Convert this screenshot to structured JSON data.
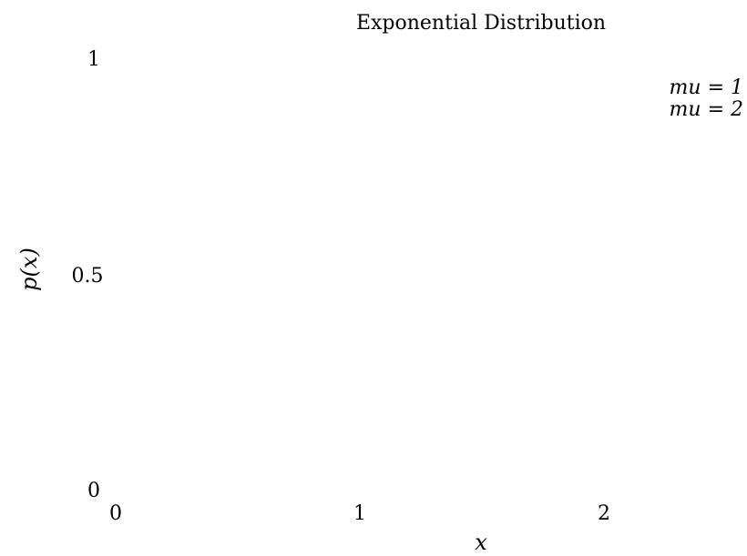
{
  "chart_data": {
    "type": "line",
    "title": "Exponential Distribution",
    "xlabel": "x",
    "ylabel": "p(x)",
    "xlim": [
      0,
      2.5
    ],
    "ylim": [
      0,
      1
    ],
    "xticks": [
      "0",
      "1",
      "2"
    ],
    "yticks": [
      "0",
      "0.5",
      "1"
    ],
    "grid": false,
    "legend_position": "top-right",
    "series": [
      {
        "name": "mu = 1",
        "x": [],
        "y": []
      },
      {
        "name": "mu = 2",
        "x": [],
        "y": []
      }
    ]
  }
}
